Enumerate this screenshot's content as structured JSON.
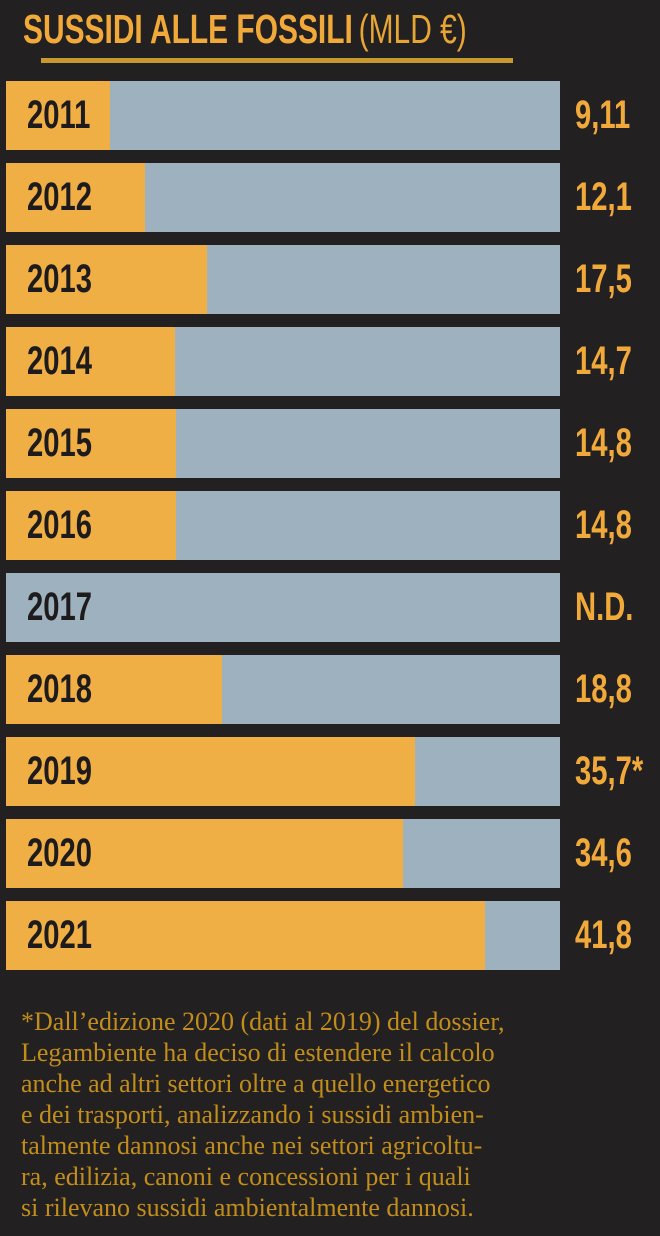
{
  "title": {
    "main": "SUSSIDI ALLE FOSSILI",
    "unit": "(MLD €)"
  },
  "colors": {
    "background": "#232021",
    "bar_fill_orange": "#f0af44",
    "bar_track_bluegray": "#9db1be",
    "accent_text_orange": "#f1aa39",
    "title_underline_gold": "#c8992d",
    "footnote_gold": "#c28e19",
    "year_label_dark": "#1e1b1c"
  },
  "chart_data": {
    "type": "bar",
    "orientation": "horizontal",
    "title": "SUSSIDI ALLE FOSSILI (MLD €)",
    "ylabel": "",
    "xlabel": "",
    "unit": "MLD €",
    "xlim": [
      0,
      48.3
    ],
    "grid": false,
    "legend": "none",
    "categories": [
      "2011",
      "2012",
      "2013",
      "2014",
      "2015",
      "2016",
      "2017",
      "2018",
      "2019",
      "2020",
      "2021"
    ],
    "values": [
      9.11,
      12.1,
      17.5,
      14.7,
      14.8,
      14.8,
      null,
      18.8,
      35.7,
      34.6,
      41.8
    ],
    "value_labels": [
      "9,11",
      "12,1",
      "17,5",
      "14,7",
      "14,8",
      "14,8",
      "N.D.",
      "18,8",
      "35,7*",
      "34,6",
      "41,8"
    ],
    "notes": "2017 value not available (N.D.); 35,7 for 2019 carries an asterisk referring to the footnote"
  },
  "footnote": "*Dall’edizione 2020 (dati al 2019) del dossier,\nLegambiente ha deciso di estendere il calcolo\nanche ad altri settori oltre a quello energetico\ne dei trasporti, analizzando i sussidi ambien-\ntalmente dannosi anche nei settori agricoltu-\nra, edilizia, canoni e concessioni  per i quali\nsi rilevano sussidi ambientalmente dannosi."
}
